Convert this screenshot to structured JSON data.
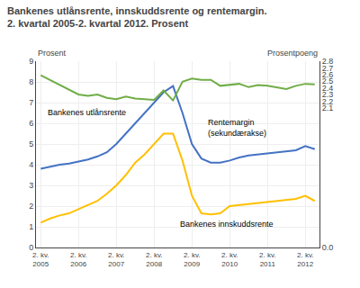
{
  "chart_data": {
    "type": "line",
    "title": "Bankenes utlånsrente, innskuddsrente og rentemargin.",
    "subtitle": "2. kvartal 2005-2. kvartal 2012. Prosent",
    "ylabel": "Prosent",
    "y2label": "Prosentpoeng",
    "categories": [
      "2. kv.\n2005",
      null,
      null,
      null,
      "2. kv.\n2006",
      null,
      null,
      null,
      "2. kv.\n2007",
      null,
      null,
      null,
      "2. kv.\n2008",
      null,
      null,
      null,
      "2. kv.\n2009",
      null,
      null,
      null,
      "2. kv.\n2010",
      null,
      null,
      null,
      "2. kv.\n2011",
      null,
      null,
      null,
      "2. kv.\n2012",
      null
    ],
    "series": [
      {
        "name": "Bankenes utlånsrente",
        "color": "#4472C4",
        "values": [
          3.8,
          3.9,
          4.0,
          4.05,
          4.15,
          4.25,
          4.4,
          4.6,
          5.0,
          5.5,
          6.0,
          6.5,
          7.0,
          7.5,
          7.8,
          6.5,
          5.0,
          4.3,
          4.1,
          4.1,
          4.2,
          4.35,
          4.45,
          4.5,
          4.55,
          4.6,
          4.65,
          4.7,
          4.9,
          4.75
        ]
      },
      {
        "name": "Bankenes innskuddsrente",
        "color": "#FFC000",
        "values": [
          1.2,
          1.4,
          1.55,
          1.65,
          1.85,
          2.05,
          2.25,
          2.6,
          3.0,
          3.5,
          4.1,
          4.5,
          5.0,
          5.5,
          5.5,
          4.2,
          2.5,
          1.65,
          1.6,
          1.65,
          2.0,
          2.05,
          2.1,
          2.15,
          2.2,
          2.25,
          2.3,
          2.35,
          2.5,
          2.25
        ]
      },
      {
        "name": "Rentemargin\n(sekundærakse)",
        "color": "#70AD47",
        "axis": "y2",
        "values": [
          2.59,
          2.52,
          2.45,
          2.38,
          2.3,
          2.28,
          2.3,
          2.25,
          2.23,
          2.27,
          2.24,
          2.23,
          2.22,
          2.36,
          2.21,
          2.49,
          2.54,
          2.52,
          2.52,
          2.43,
          2.44,
          2.46,
          2.41,
          2.44,
          2.43,
          2.41,
          2.38,
          2.43,
          2.46,
          2.45
        ]
      }
    ],
    "ylim": [
      0,
      9
    ],
    "yticks": [
      0,
      1,
      2,
      3,
      4,
      5,
      6,
      7,
      8,
      9
    ],
    "y2lim": [
      0.0,
      2.8
    ],
    "y2ticks": [
      {
        "value": 0.0,
        "label": "0.0"
      },
      2.1,
      2.2,
      2.3,
      2.4,
      2.5,
      2.6,
      2.7,
      2.8
    ],
    "grid": true
  }
}
